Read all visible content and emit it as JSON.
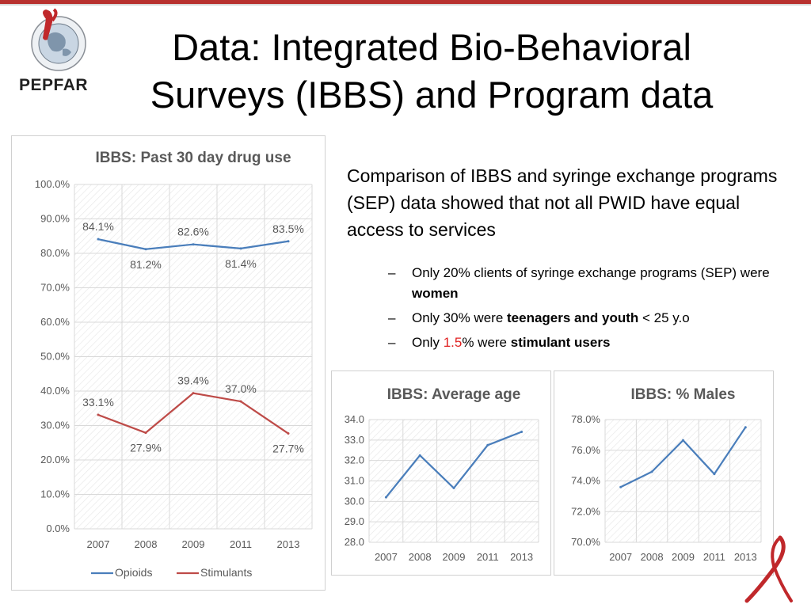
{
  "slide": {
    "title_line1": "Data: Integrated Bio-Behavioral",
    "title_line2": "Surveys (IBBS) and Program data",
    "logo_text": "PEPFAR",
    "description": "Comparison of IBBS and syringe exchange programs (SEP) data showed that not all PWID have equal access to services",
    "bullets": [
      {
        "dash": "–",
        "pre": "Only 20% clients of syringe exchange programs (SEP) were ",
        "bold": "women",
        "post": ""
      },
      {
        "dash": "–",
        "pre": "Only 30% were ",
        "bold": "teenagers and youth",
        "post": " < 25 y.o"
      },
      {
        "dash": "–",
        "pre": "Only ",
        "highlight": "1.5",
        "mid": "% were ",
        "bold": "stimulant users"
      }
    ],
    "colors": {
      "accent_bar": "#b8312f",
      "highlight": "#e02020",
      "series_blue": "#4a7ebb",
      "series_red": "#be4b48",
      "chart_text": "#595959"
    },
    "icons": [
      "globe-seal-icon",
      "red-ribbon-icon"
    ]
  },
  "chart_data": [
    {
      "type": "line",
      "title": "IBBS: Past 30 day drug use",
      "categories": [
        "2007",
        "2008",
        "2009",
        "2011",
        "2013"
      ],
      "series": [
        {
          "name": "Opioids",
          "values": [
            84.1,
            81.2,
            82.6,
            81.4,
            83.5
          ],
          "labels": [
            "84.1%",
            "81.2%",
            "82.6%",
            "81.4%",
            "83.5%"
          ],
          "color": "#4a7ebb"
        },
        {
          "name": "Stimulants",
          "values": [
            33.1,
            27.9,
            39.4,
            37.0,
            27.7
          ],
          "labels": [
            "33.1%",
            "27.9%",
            "39.4%",
            "37.0%",
            "27.7%"
          ],
          "color": "#be4b48"
        }
      ],
      "ylim": [
        0,
        100
      ],
      "yticks": [
        "0.0%",
        "10.0%",
        "20.0%",
        "30.0%",
        "40.0%",
        "50.0%",
        "60.0%",
        "70.0%",
        "80.0%",
        "90.0%",
        "100.0%"
      ],
      "grid": true,
      "legend": "bottom"
    },
    {
      "type": "line",
      "title": "IBBS: Average age",
      "categories": [
        "2007",
        "2008",
        "2009",
        "2011",
        "2013"
      ],
      "series": [
        {
          "values": [
            30.2,
            32.25,
            30.65,
            32.75,
            33.4
          ],
          "color": "#4a7ebb"
        }
      ],
      "ylim": [
        28,
        34
      ],
      "yticks": [
        "28.0",
        "29.0",
        "30.0",
        "31.0",
        "32.0",
        "33.0",
        "34.0"
      ],
      "grid": true
    },
    {
      "type": "line",
      "title": "IBBS: % Males",
      "categories": [
        "2007",
        "2008",
        "2009",
        "2011",
        "2013"
      ],
      "series": [
        {
          "values": [
            73.6,
            74.6,
            76.65,
            74.45,
            77.5
          ],
          "color": "#4a7ebb"
        }
      ],
      "ylim": [
        70,
        78
      ],
      "yticks": [
        "70.0%",
        "72.0%",
        "74.0%",
        "76.0%",
        "78.0%"
      ],
      "grid": true
    }
  ]
}
